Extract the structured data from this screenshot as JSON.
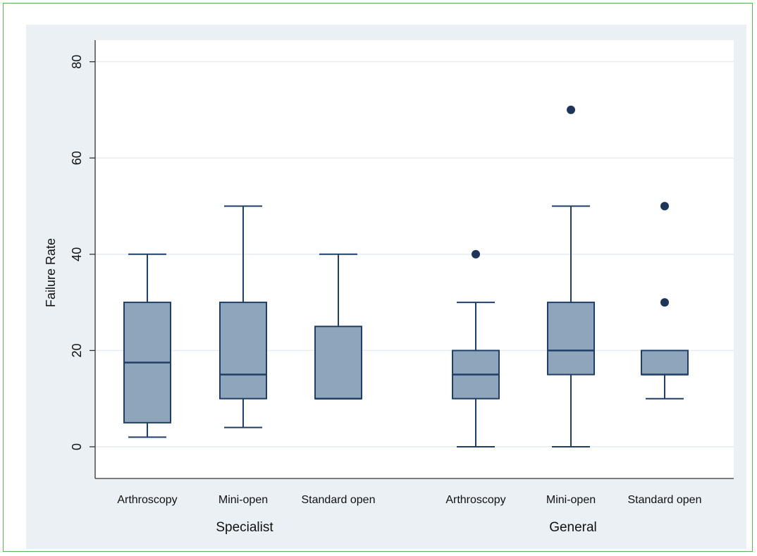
{
  "chart_data": {
    "type": "box",
    "ylabel": "Failure Rate",
    "xlabel": "",
    "ylim": [
      -4,
      82
    ],
    "yticks": [
      0,
      20,
      40,
      60,
      80
    ],
    "grid": true,
    "colors": {
      "box_fill": "#8ea5bb",
      "box_edge": "#1f3f66",
      "outlier": "#1c3558",
      "plot_bg": "#ffffff",
      "outer_bg": "#eaf0f3",
      "grid": "#e6ecef"
    },
    "groups": [
      {
        "label": "Specialist",
        "boxes": [
          {
            "category": "Arthroscopy",
            "whisker_low": 2,
            "q1": 5,
            "median": 17.5,
            "q3": 30,
            "whisker_high": 40,
            "outliers": []
          },
          {
            "category": "Mini-open",
            "whisker_low": 4,
            "q1": 10,
            "median": 15,
            "q3": 30,
            "whisker_high": 50,
            "outliers": []
          },
          {
            "category": "Standard open",
            "whisker_low": 10,
            "q1": 10,
            "median": 10,
            "q3": 25,
            "whisker_high": 40,
            "outliers": []
          }
        ]
      },
      {
        "label": "General",
        "boxes": [
          {
            "category": "Arthroscopy",
            "whisker_low": 0,
            "q1": 10,
            "median": 15,
            "q3": 20,
            "whisker_high": 30,
            "outliers": [
              40
            ]
          },
          {
            "category": "Mini-open",
            "whisker_low": 0,
            "q1": 15,
            "median": 20,
            "q3": 30,
            "whisker_high": 50,
            "outliers": [
              70
            ]
          },
          {
            "category": "Standard open",
            "whisker_low": 10,
            "q1": 15,
            "median": 15,
            "q3": 20,
            "whisker_high": 20,
            "outliers": [
              30,
              50
            ]
          }
        ]
      }
    ]
  }
}
